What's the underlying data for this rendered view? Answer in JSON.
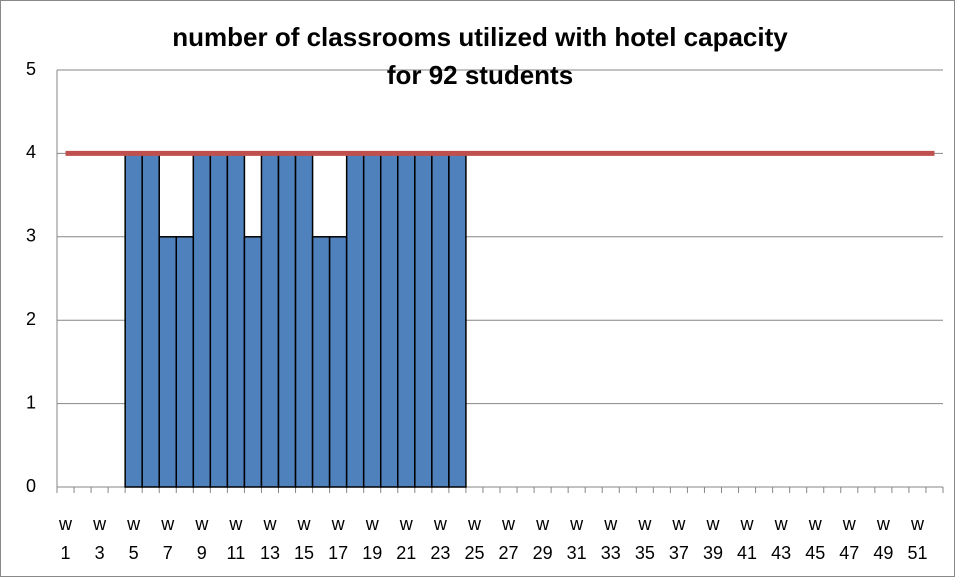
{
  "chart_data": {
    "type": "bar",
    "title": "number of classrooms utilized with hotel capacity for 92 students",
    "categories": [
      "w 1",
      null,
      "w 3",
      null,
      "w 5",
      null,
      "w 7",
      null,
      "w 9",
      null,
      "w 11",
      null,
      "w 13",
      null,
      "w 15",
      null,
      "w 17",
      null,
      "w 19",
      null,
      "w 21",
      null,
      "w 23",
      null,
      "w 25",
      null,
      "w 27",
      null,
      "w 29",
      null,
      "w 31",
      null,
      "w 33",
      null,
      "w 35",
      null,
      "w 37",
      null,
      "w 39",
      null,
      "w 41",
      null,
      "w 43",
      null,
      "w 45",
      null,
      "w 47",
      null,
      "w 49",
      null,
      "w 51",
      null
    ],
    "series": [
      {
        "type": "bar",
        "color": "#4f81bd",
        "values": [
          null,
          null,
          null,
          null,
          4,
          4,
          3,
          3,
          4,
          4,
          4,
          3,
          4,
          4,
          4,
          3,
          3,
          4,
          4,
          4,
          4,
          4,
          4,
          4,
          null,
          null,
          null,
          null,
          null,
          null,
          null,
          null,
          null,
          null,
          null,
          null,
          null,
          null,
          null,
          null,
          null,
          null,
          null,
          null,
          null,
          null,
          null,
          null,
          null,
          null,
          null,
          null
        ]
      },
      {
        "type": "line",
        "color": "#c0504d",
        "values": [
          4,
          4,
          4,
          4,
          4,
          4,
          4,
          4,
          4,
          4,
          4,
          4,
          4,
          4,
          4,
          4,
          4,
          4,
          4,
          4,
          4,
          4,
          4,
          4,
          4,
          4,
          4,
          4,
          4,
          4,
          4,
          4,
          4,
          4,
          4,
          4,
          4,
          4,
          4,
          4,
          4,
          4,
          4,
          4,
          4,
          4,
          4,
          4,
          4,
          4,
          4,
          4
        ]
      }
    ],
    "ylim": [
      0,
      5
    ],
    "yticks": [
      0,
      1,
      2,
      3,
      4,
      5
    ],
    "grid": true
  }
}
